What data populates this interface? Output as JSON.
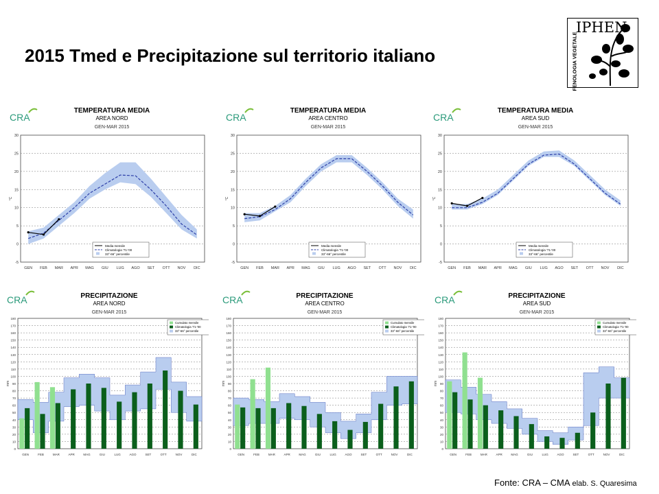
{
  "slide": {
    "title": "2015  Tmed e Precipitazione sul territorio italiano"
  },
  "logo": {
    "name": "IPHEN",
    "subtitle": "FENOLOGIA VEGETALE"
  },
  "footer": {
    "label": "Fonte:",
    "source": "CRA – CMA",
    "author": "elab. S. Quaresima"
  },
  "colors": {
    "band": "#b9cdef",
    "clim_line": "#2c3fa8",
    "obs_line": "#000000",
    "bar_cum": "#90e090",
    "bar_clim": "#0b5f1c"
  },
  "chart_data": [
    {
      "type": "line",
      "id": "temp-nord",
      "cra": "CRA",
      "title": "TEMPERATURA MEDIA",
      "subtitle": "AREA  NORD",
      "period": "GEN-MAR 2015",
      "ylabel": "°C",
      "ylim": [
        -5,
        30
      ],
      "yticks": [
        -5,
        0,
        5,
        10,
        15,
        20,
        25,
        30
      ],
      "categories": [
        "GEN",
        "FEB",
        "MAR",
        "APR",
        "MAG",
        "GIU",
        "LUG",
        "AGO",
        "SET",
        "OTT",
        "NOV",
        "DIC"
      ],
      "legend": [
        "Media mensile",
        "Climatologia '71-'00",
        "33°-66° percentile"
      ],
      "climatology": [
        1.5,
        3,
        6.5,
        10,
        14,
        16.5,
        19,
        18.8,
        15,
        10.5,
        5.5,
        2.5
      ],
      "band_low": [
        0,
        1.5,
        5,
        8.5,
        12.5,
        15,
        17,
        16.5,
        13,
        8.5,
        4,
        1.5
      ],
      "band_high": [
        3.5,
        4.5,
        8,
        11.5,
        16,
        19.5,
        22.5,
        22.5,
        18,
        13,
        8,
        4
      ],
      "observed": [
        3.2,
        2.6,
        6.8
      ]
    },
    {
      "type": "line",
      "id": "temp-centro",
      "cra": "CRA",
      "title": "TEMPERATURA MEDIA",
      "subtitle": "AREA  CENTRO",
      "period": "GEN-MAR 2015",
      "ylabel": "°C",
      "ylim": [
        -5,
        30
      ],
      "yticks": [
        -5,
        0,
        5,
        10,
        15,
        20,
        25,
        30
      ],
      "categories": [
        "GEN",
        "FEB",
        "MAR",
        "APR",
        "MAG",
        "GIU",
        "LUG",
        "AGO",
        "SET",
        "OTT",
        "NOV",
        "DIC"
      ],
      "legend": [
        "Media mensile",
        "Climatologia '71-'00",
        "33°-66° percentile"
      ],
      "climatology": [
        7,
        7.5,
        9.5,
        12.5,
        17,
        21,
        23.5,
        23.5,
        20,
        16,
        11.5,
        8
      ],
      "band_low": [
        6,
        6.5,
        9,
        11.5,
        16,
        20,
        22.5,
        22.5,
        19,
        15,
        10.5,
        7
      ],
      "band_high": [
        8.5,
        8.5,
        10.5,
        13.5,
        18,
        22,
        24.5,
        24.5,
        21,
        17,
        12.5,
        9.5
      ],
      "observed": [
        8.2,
        7.7,
        10.3
      ]
    },
    {
      "type": "line",
      "id": "temp-sud",
      "cra": "CRA",
      "title": "TEMPERATURA MEDIA",
      "subtitle": "AREA  SUD",
      "period": "GEN-MAR 2015",
      "ylabel": "°C",
      "ylim": [
        -5,
        30
      ],
      "yticks": [
        -5,
        0,
        5,
        10,
        15,
        20,
        25,
        30
      ],
      "categories": [
        "GEN",
        "FEB",
        "MAR",
        "APR",
        "MAG",
        "GIU",
        "LUG",
        "AGO",
        "SET",
        "OTT",
        "NOV",
        "DIC"
      ],
      "legend": [
        "Media mensile",
        "Climatologia '71-'00",
        "33°-66° percentile"
      ],
      "climatology": [
        10,
        10,
        11.5,
        14,
        18,
        22,
        24.5,
        24.8,
        22,
        18,
        14,
        11
      ],
      "band_low": [
        9.5,
        9.5,
        11,
        13.5,
        17.5,
        21.5,
        24,
        24,
        21.5,
        17.5,
        13.5,
        10.5
      ],
      "band_high": [
        11,
        11,
        12.5,
        15,
        19,
        23,
        25.5,
        25.8,
        23,
        19,
        15,
        12
      ],
      "observed": [
        11.2,
        10.5,
        12.7
      ]
    },
    {
      "type": "bar",
      "id": "prec-nord",
      "cra": "CRA",
      "title": "PRECIPITAZIONE",
      "subtitle": "AREA  NORD",
      "period": "GEN-MAR 2015",
      "ylabel": "mm",
      "ylim": [
        0,
        180
      ],
      "yticks": [
        0,
        10,
        20,
        30,
        40,
        50,
        60,
        70,
        80,
        90,
        100,
        110,
        120,
        130,
        140,
        150,
        160,
        170,
        180
      ],
      "categories": [
        "GEN",
        "FEB",
        "MAR",
        "APR",
        "MAG",
        "GIU",
        "LUG",
        "AGO",
        "SET",
        "OTT",
        "NOV",
        "DIC"
      ],
      "legend": [
        "Cumulato mensile",
        "Climatologia '71-'00",
        "33°-66° percentile"
      ],
      "cumulato": [
        42,
        92,
        85
      ],
      "climatology": [
        56,
        48,
        63,
        82,
        90,
        84,
        65,
        78,
        90,
        108,
        80,
        61
      ],
      "band_low": [
        40,
        22,
        38,
        58,
        60,
        52,
        40,
        52,
        55,
        82,
        50,
        38
      ],
      "band_high": [
        68,
        64,
        78,
        98,
        103,
        98,
        74,
        88,
        106,
        126,
        92,
        72
      ]
    },
    {
      "type": "bar",
      "id": "prec-centro",
      "cra": "CRA",
      "title": "PRECIPITAZIONE",
      "subtitle": "AREA  CENTRO",
      "period": "GEN-MAR 2015",
      "ylabel": "mm",
      "ylim": [
        0,
        180
      ],
      "yticks": [
        0,
        10,
        20,
        30,
        40,
        50,
        60,
        70,
        80,
        90,
        100,
        110,
        120,
        130,
        140,
        150,
        160,
        170,
        180
      ],
      "categories": [
        "GEN",
        "FEB",
        "MAR",
        "APR",
        "MAG",
        "GIU",
        "LUG",
        "AGO",
        "SET",
        "OTT",
        "NOV",
        "DIC"
      ],
      "legend": [
        "Cumulato mensile",
        "Climatologia '71-'00",
        "33°-66° percentile"
      ],
      "cumulato": [
        61,
        96,
        112
      ],
      "climatology": [
        57,
        56,
        56,
        63,
        59,
        48,
        38,
        26,
        37,
        62,
        86,
        93
      ],
      "band_low": [
        32,
        35,
        35,
        42,
        40,
        30,
        22,
        14,
        22,
        40,
        60,
        62
      ],
      "band_high": [
        70,
        68,
        65,
        76,
        72,
        64,
        50,
        38,
        48,
        78,
        100,
        100
      ]
    },
    {
      "type": "bar",
      "id": "prec-sud",
      "cra": "CRA",
      "title": "PRECIPITAZIONE",
      "subtitle": "AREA  SUD",
      "period": "GEN-MAR 2015",
      "ylabel": "mm",
      "ylim": [
        0,
        180
      ],
      "yticks": [
        0,
        10,
        20,
        30,
        40,
        50,
        60,
        70,
        80,
        90,
        100,
        110,
        120,
        130,
        140,
        150,
        160,
        170,
        180
      ],
      "categories": [
        "GEN",
        "FEB",
        "MAR",
        "APR",
        "MAG",
        "GIU",
        "LUG",
        "AGO",
        "SET",
        "OTT",
        "NOV",
        "DIC"
      ],
      "legend": [
        "Cumulato mensile",
        "Climatologia '71-'00",
        "33°-66° percentile"
      ],
      "cumulato": [
        93,
        133,
        98
      ],
      "climatology": [
        78,
        68,
        60,
        53,
        45,
        34,
        17,
        15,
        22,
        50,
        90,
        98
      ],
      "band_low": [
        50,
        48,
        40,
        35,
        28,
        20,
        10,
        6,
        12,
        32,
        70,
        70
      ],
      "band_high": [
        95,
        85,
        75,
        65,
        55,
        42,
        25,
        22,
        30,
        105,
        113,
        98
      ]
    }
  ]
}
